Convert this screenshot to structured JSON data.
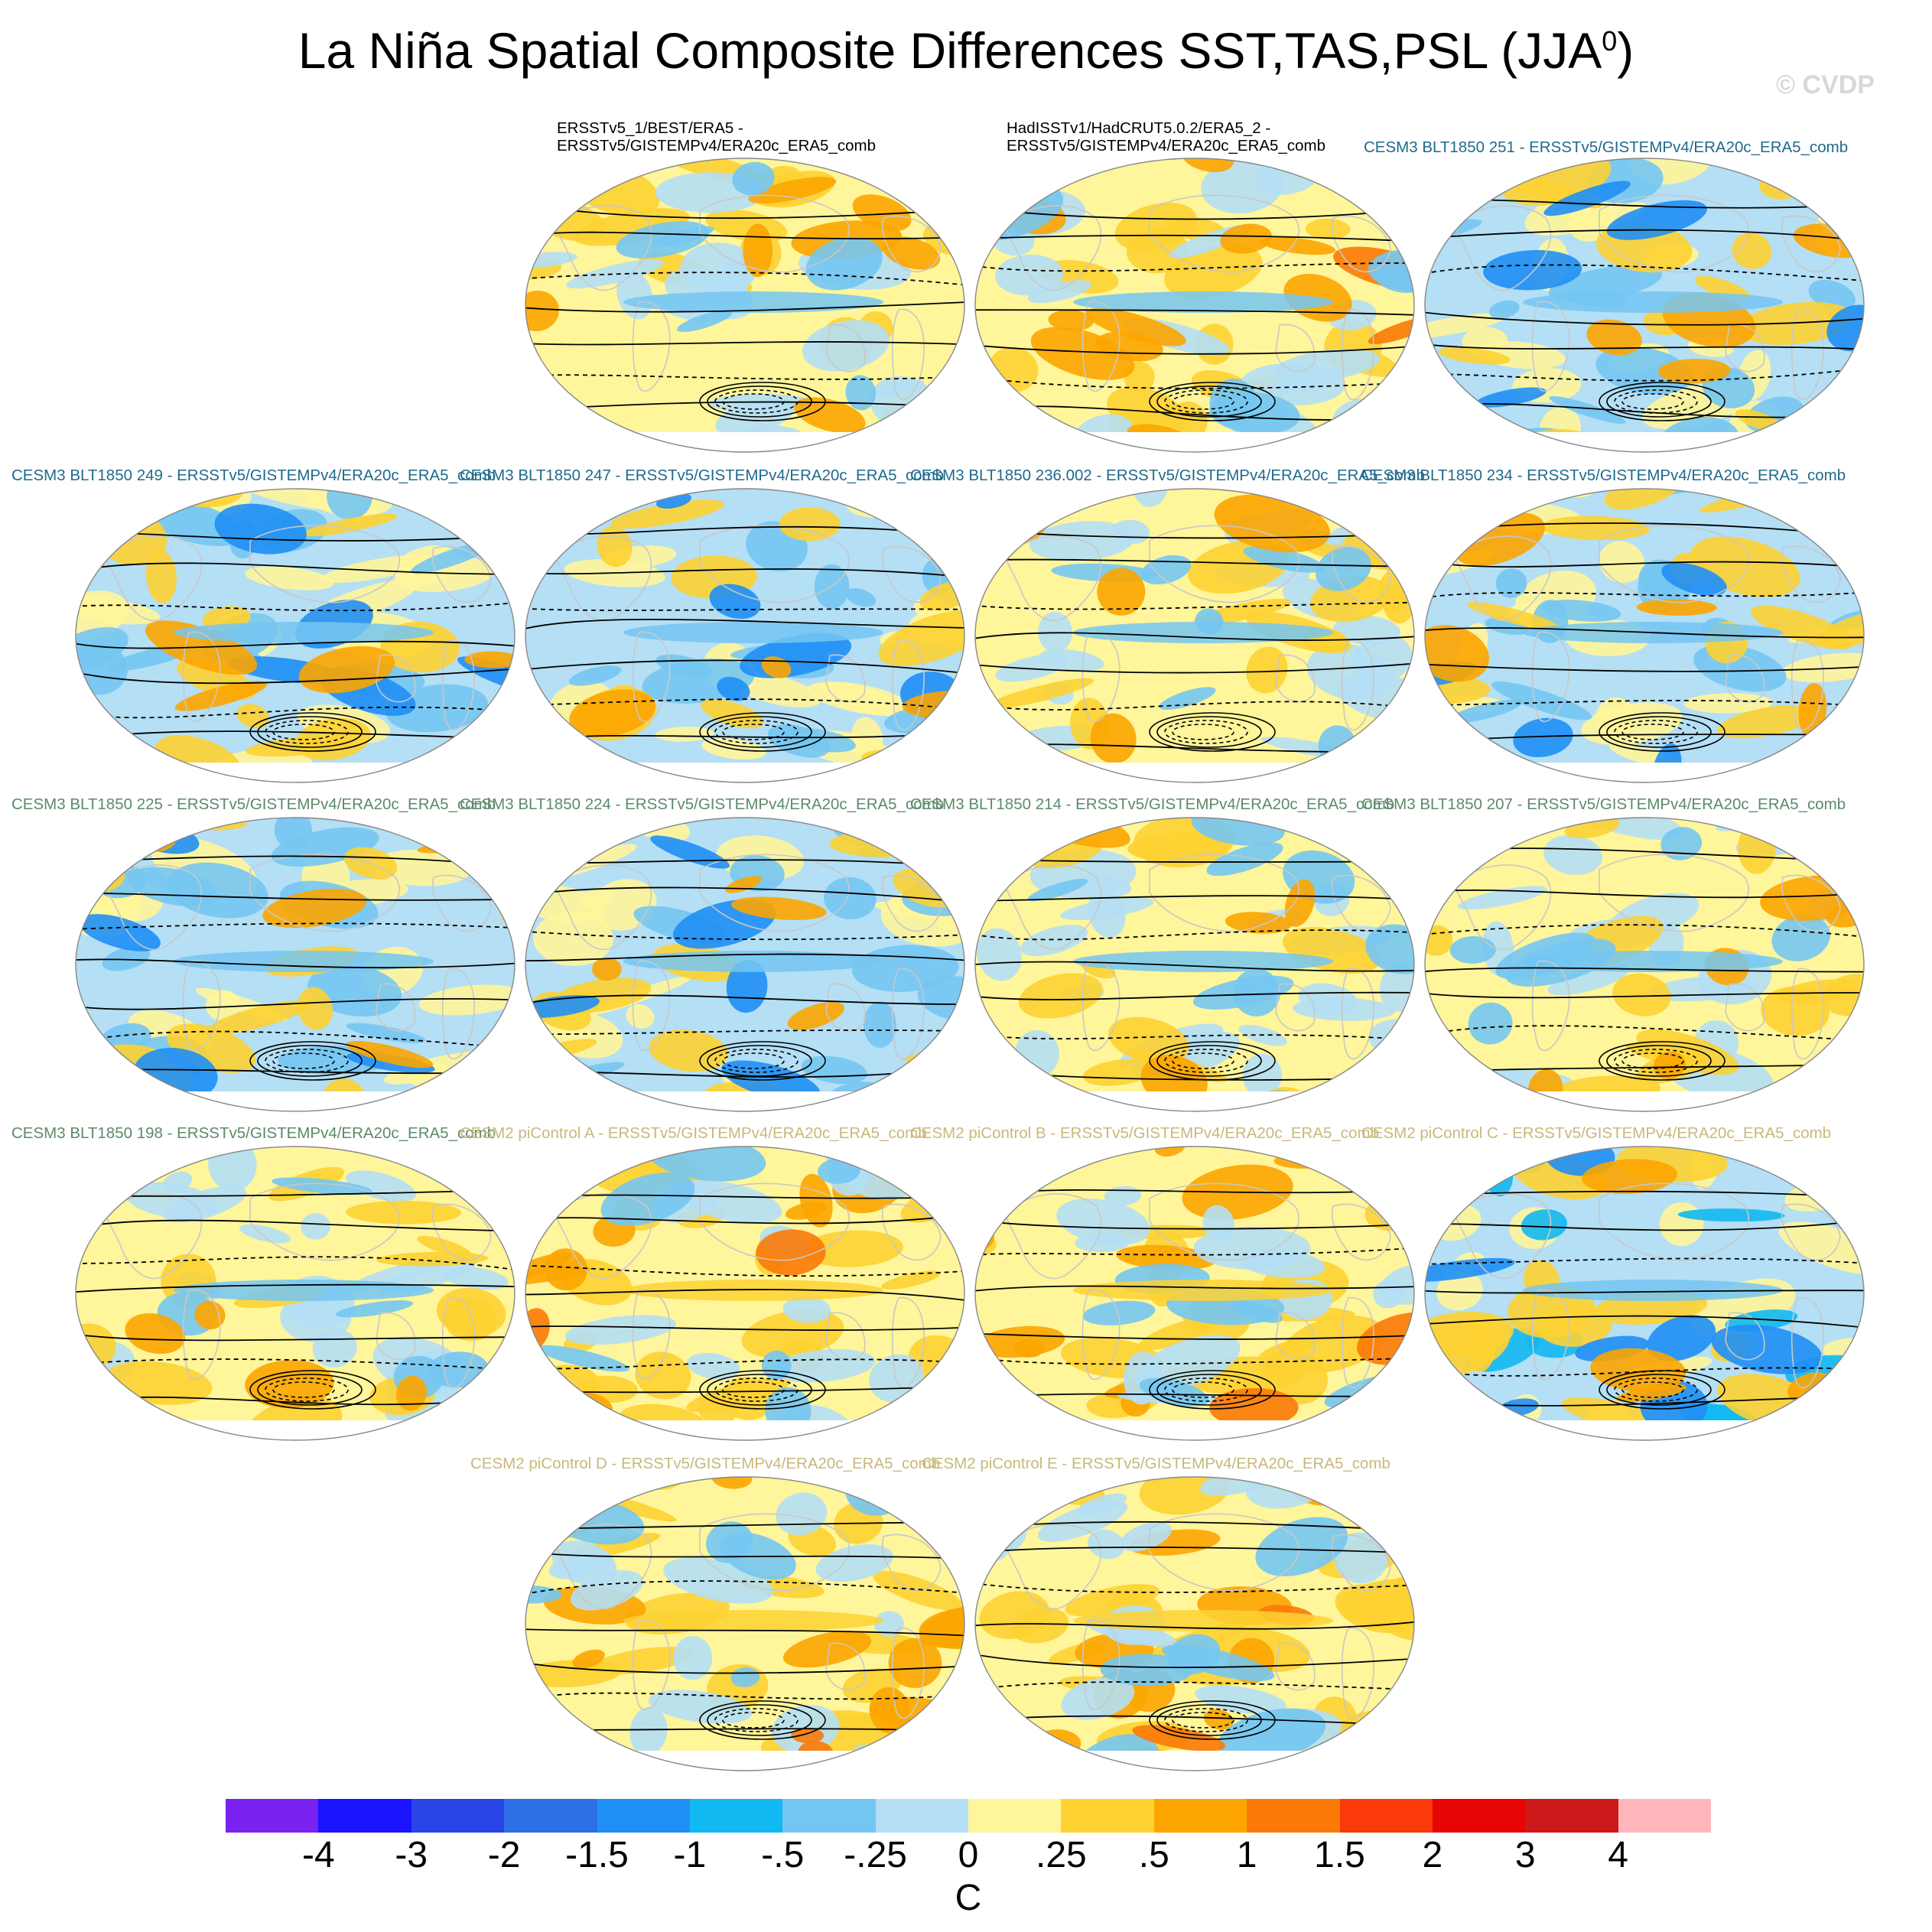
{
  "figure": {
    "title_main": "La Niña Spatial Composite Differences SST,TAS,PSL (JJA",
    "title_sup": "0",
    "title_tail": ")",
    "watermark": "© CVDP"
  },
  "colors": {
    "land_boundary": "#c8c8c8",
    "contour": "#000000",
    "row1_label": "#1f6a8c",
    "row2_label": "#1f6a8c",
    "row3_label": "#5b8a6a",
    "row4_label": "#c8b87a"
  },
  "panels": [
    {
      "label": "ERSSTv5_1/BEST/ERA5 -\nERSSTv5/GISTEMPv4/ERA20c_ERA5_comb",
      "label_color": "#000000",
      "pattern": "obs1"
    },
    {
      "label": "HadISSTv1/HadCRUT5.0.2/ERA5_2 -\nERSSTv5/GISTEMPv4/ERA20c_ERA5_comb",
      "label_color": "#000000",
      "pattern": "obs2"
    },
    {
      "label": "CESM3 BLT1850 251 - ERSSTv5/GISTEMPv4/ERA20c_ERA5_comb",
      "label_color": "#1f6a8c",
      "pattern": "cold"
    },
    {
      "label": "CESM3 BLT1850 249 - ERSSTv5/GISTEMPv4/ERA20c_ERA5_comb",
      "label_color": "#1f6a8c",
      "pattern": "cold"
    },
    {
      "label": "CESM3 BLT1850 247 - ERSSTv5/GISTEMPv4/ERA20c_ERA5_comb",
      "label_color": "#1f6a8c",
      "pattern": "cold"
    },
    {
      "label": "CESM3 BLT1850 236.002 - ERSSTv5/GISTEMPv4/ERA20c_ERA5_comb",
      "label_color": "#1f6a8c",
      "pattern": "mixed"
    },
    {
      "label": "CESM3 BLT1850 234 - ERSSTv5/GISTEMPv4/ERA20c_ERA5_comb",
      "label_color": "#1f6a8c",
      "pattern": "cold"
    },
    {
      "label": "CESM3 BLT1850 225 - ERSSTv5/GISTEMPv4/ERA20c_ERA5_comb",
      "label_color": "#5b8a6a",
      "pattern": "cold"
    },
    {
      "label": "CESM3 BLT1850 224 - ERSSTv5/GISTEMPv4/ERA20c_ERA5_comb",
      "label_color": "#5b8a6a",
      "pattern": "cold"
    },
    {
      "label": "CESM3 BLT1850 214 - ERSSTv5/GISTEMPv4/ERA20c_ERA5_comb",
      "label_color": "#5b8a6a",
      "pattern": "mixed"
    },
    {
      "label": "CESM3 BLT1850 207 - ERSSTv5/GISTEMPv4/ERA20c_ERA5_comb",
      "label_color": "#5b8a6a",
      "pattern": "mixed"
    },
    {
      "label": "CESM3 BLT1850 198 - ERSSTv5/GISTEMPv4/ERA20c_ERA5_comb",
      "label_color": "#5b8a6a",
      "pattern": "mixed"
    },
    {
      "label": "CESM2 piControl A - ERSSTv5/GISTEMPv4/ERA20c_ERA5_comb",
      "label_color": "#c8b87a",
      "pattern": "warm"
    },
    {
      "label": "CESM2 piControl B - ERSSTv5/GISTEMPv4/ERA20c_ERA5_comb",
      "label_color": "#c8b87a",
      "pattern": "warm"
    },
    {
      "label": "CESM2 piControl C - ERSSTv5/GISTEMPv4/ERA20c_ERA5_comb",
      "label_color": "#c8b87a",
      "pattern": "coldstrong"
    },
    {
      "label": "CESM2 piControl D - ERSSTv5/GISTEMPv4/ERA20c_ERA5_comb",
      "label_color": "#c8b87a",
      "pattern": "warm"
    },
    {
      "label": "CESM2 piControl E - ERSSTv5/GISTEMPv4/ERA20c_ERA5_comb",
      "label_color": "#c8b87a",
      "pattern": "warm"
    }
  ],
  "colorbar": {
    "unit": "C",
    "colors": [
      "#7a22f0",
      "#1a14ff",
      "#2a45e6",
      "#2f6fe6",
      "#1f8ff5",
      "#12b8f2",
      "#74c6f2",
      "#b4dff5",
      "#fff59a",
      "#fdd232",
      "#fca500",
      "#fb7a08",
      "#fb3a0a",
      "#e60404",
      "#cc1a1a",
      "#ffb6bb"
    ],
    "labels": [
      "-4",
      "-3",
      "-2",
      "-1.5",
      "-1",
      "-.5",
      "-.25",
      "0",
      ".25",
      ".5",
      "1",
      "1.5",
      "2",
      "3",
      "4"
    ]
  }
}
